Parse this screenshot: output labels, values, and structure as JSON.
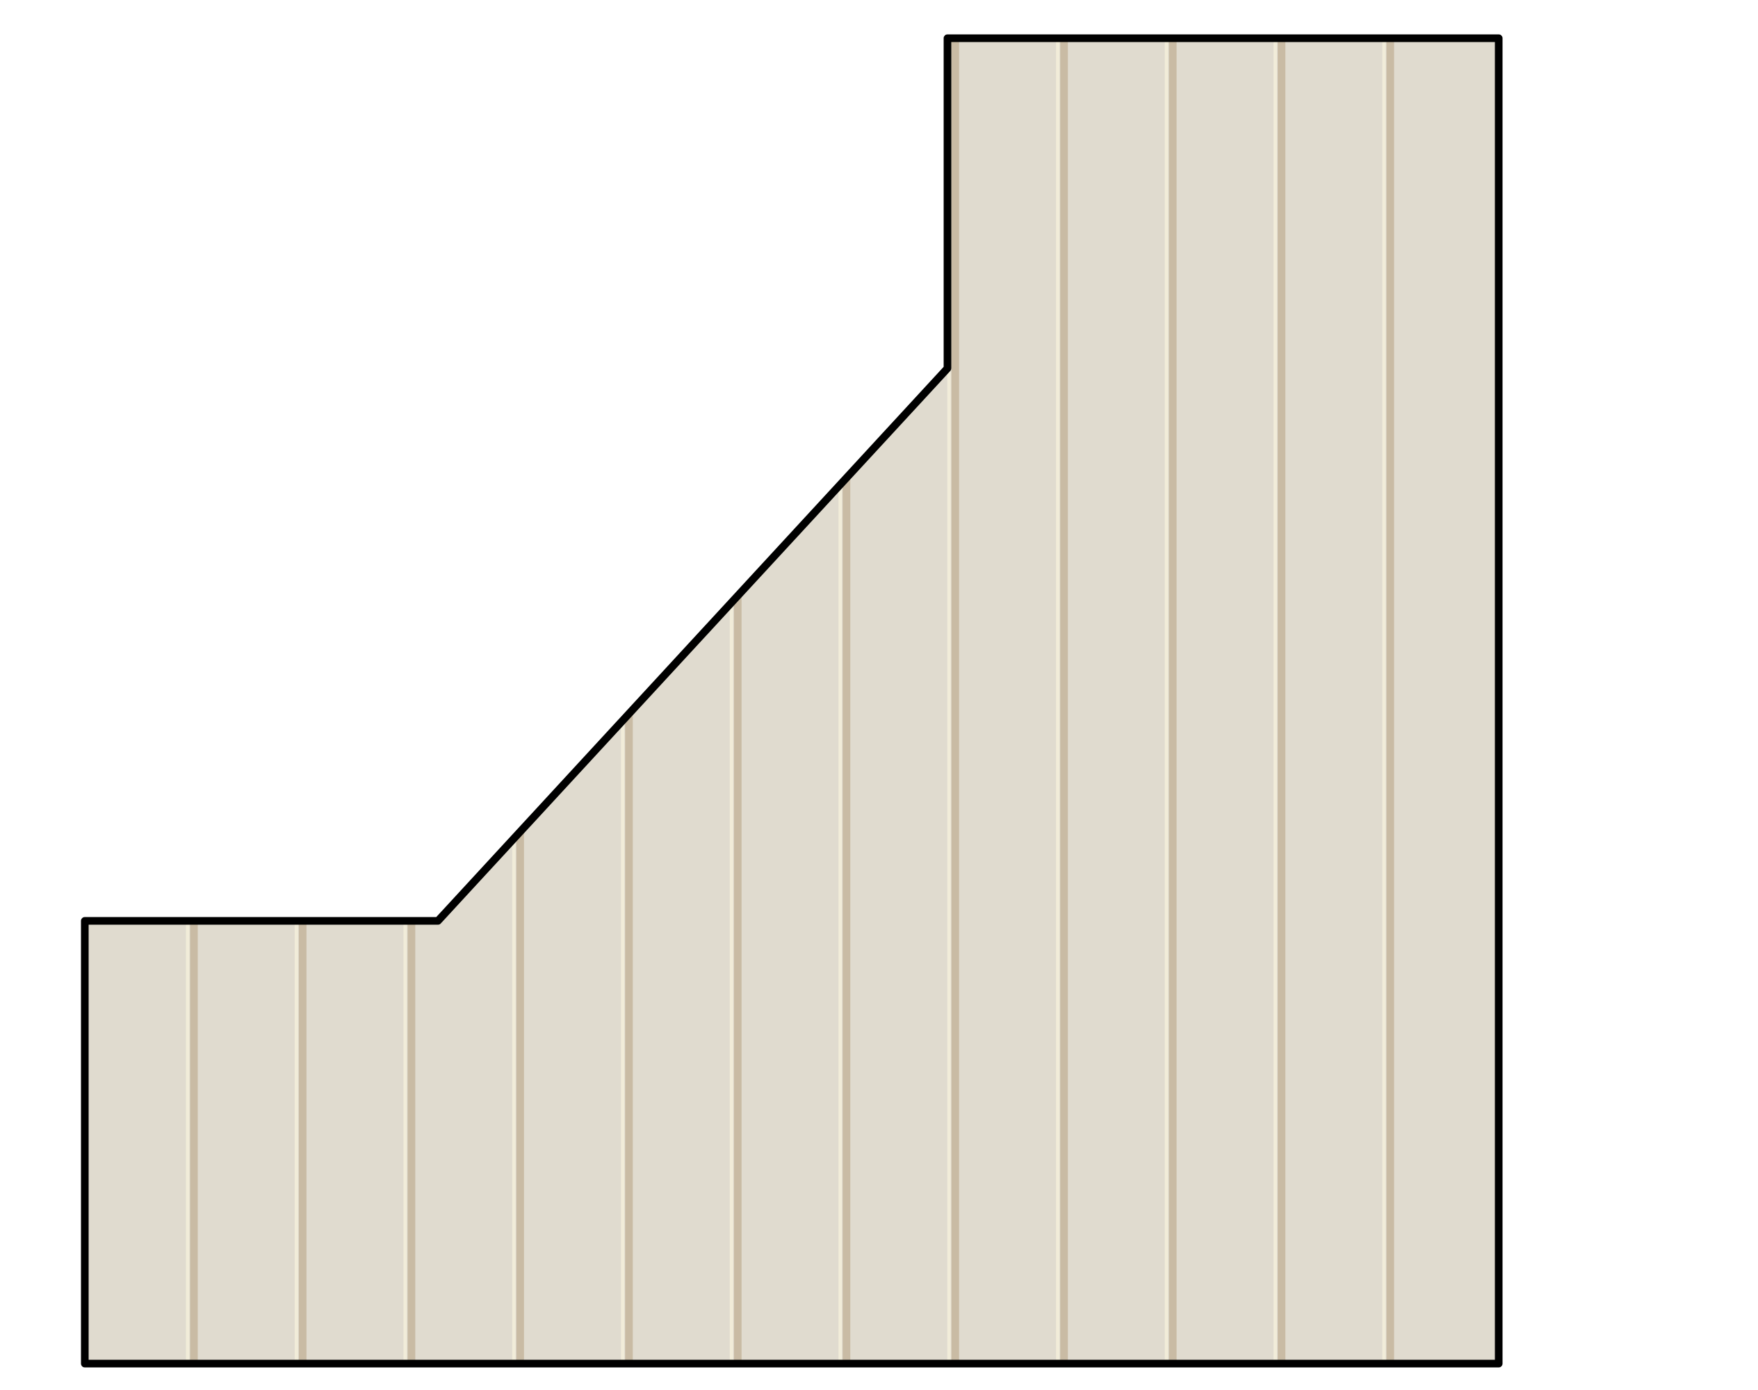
{
  "diagram": {
    "shape": "beadboard-wall-panel",
    "colors": {
      "panel_fill": "#e0dbcf",
      "groove_dark": "#c9bba4",
      "groove_light": "#f1ecd9",
      "outline": "#000000",
      "background": "#ffffff"
    },
    "outline": "step-and-slope",
    "board_count": 13
  }
}
